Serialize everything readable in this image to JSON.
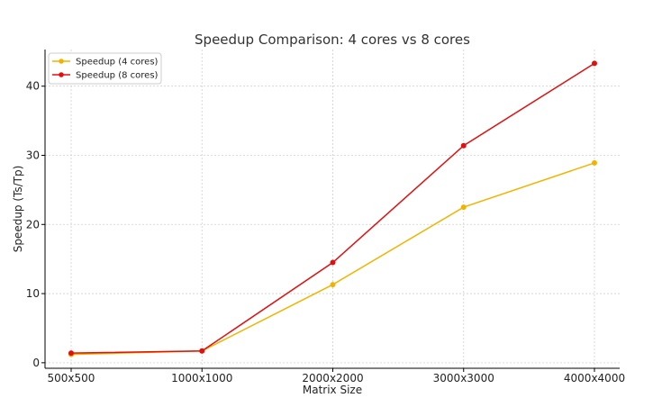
{
  "chart_data": {
    "type": "line",
    "title": "Speedup Comparison: 4 cores vs 8 cores",
    "xlabel": "Matrix Size",
    "ylabel": "Speedup (Ts/Tp)",
    "categories": [
      "500x500",
      "1000x1000",
      "2000x2000",
      "3000x3000",
      "4000x4000"
    ],
    "y_ticks": [
      0,
      10,
      20,
      30,
      40
    ],
    "y_tick_labels": [
      "0",
      "10",
      "20",
      "30",
      "40"
    ],
    "ylim": [
      -0.8,
      45.3
    ],
    "grid": true,
    "legend_position": "top-left",
    "series": [
      {
        "name": "Speedup (4 cores)",
        "color": "#f0b400",
        "values": [
          1.2,
          1.7,
          11.3,
          22.5,
          28.9
        ]
      },
      {
        "name": "Speedup (8 cores)",
        "color": "#e01010",
        "values": [
          1.4,
          1.7,
          14.5,
          31.4,
          43.3
        ]
      }
    ]
  }
}
